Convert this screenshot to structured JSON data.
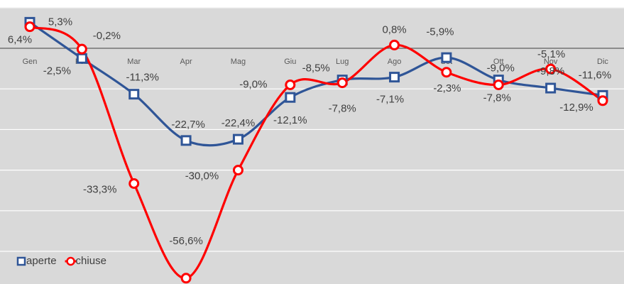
{
  "chart_data": {
    "type": "line",
    "categories": [
      "Gen",
      "Feb",
      "Mar",
      "Apr",
      "Mag",
      "Giu",
      "Lug",
      "Ago",
      "Set",
      "Ott",
      "Nov",
      "Dic"
    ],
    "series": [
      {
        "name": "aperte",
        "color": "#2f5597",
        "marker": "square",
        "values": [
          6.4,
          -2.5,
          -11.3,
          -22.7,
          -22.4,
          -12.1,
          -7.8,
          -7.1,
          -2.3,
          -7.8,
          -9.8,
          -11.6
        ],
        "value_labels": [
          "6,4%",
          "-2,5%",
          "-11,3%",
          "-22,7%",
          "-22,4%",
          "-12,1%",
          "-7,8%",
          "-7,1%",
          "-2,3%",
          "-7,8%",
          "-9,8%",
          "-11,6%"
        ]
      },
      {
        "name": "chiuse",
        "color": "#ff0000",
        "marker": "circle",
        "values": [
          5.3,
          -0.2,
          -33.3,
          -56.6,
          -30.0,
          -9.0,
          -8.5,
          0.8,
          -5.9,
          -9.0,
          -5.1,
          -12.9
        ],
        "value_labels": [
          "5,3%",
          "-0,2%",
          "-33,3%",
          "-56,6%",
          "-30,0%",
          "-9,0%",
          "-8,5%",
          "0,8%",
          "-5,9%",
          "-9,0%",
          "-5,1%",
          "-12,9%"
        ]
      }
    ],
    "ylim": [
      -58,
      10
    ],
    "yticks": [
      10,
      0,
      -10,
      -20,
      -30,
      -40,
      -50
    ],
    "grid": true,
    "legend": "bottom-left",
    "smooth": true
  }
}
